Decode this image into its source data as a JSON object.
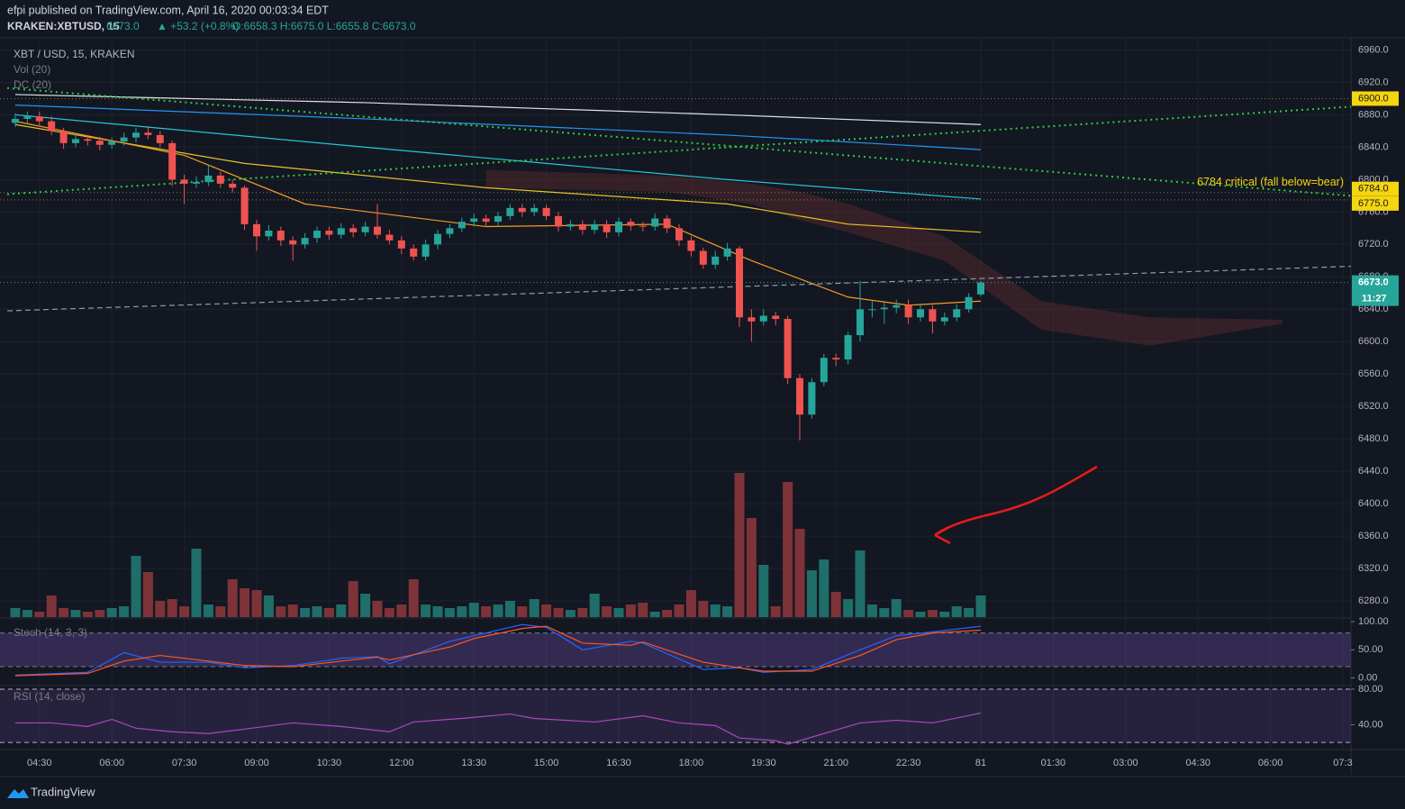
{
  "chart_data": {
    "type": "candlestick",
    "publisher": "efpi published on TradingView.com, April 16, 2020 00:03:34 EDT",
    "symbol_line": {
      "symbol": "KRAKEN:XBTUSD, 15",
      "last": "6673.0",
      "change": "▲ +53.2 (+0.8%)",
      "ohlc": "O:6658.3 H:6675.0 L:6655.8 C:6673.0"
    },
    "legend": [
      "XBT / USD, 15, KRAKEN",
      "Vol (20)",
      "DC (20)"
    ],
    "footer": "TradingView",
    "up_color": "#26a69a",
    "down_color": "#ef5350",
    "volume_up_color": "#1f6e69",
    "volume_down_color": "#7e3338",
    "xlim": [
      0.33,
      111.67
    ],
    "ylim": [
      6260,
      6975
    ],
    "xticks": [
      {
        "value": 3,
        "label": "04:30"
      },
      {
        "value": 9,
        "label": "06:00"
      },
      {
        "value": 15,
        "label": "07:30"
      },
      {
        "value": 21,
        "label": "09:00"
      },
      {
        "value": 27,
        "label": "10:30"
      },
      {
        "value": 33,
        "label": "12:00"
      },
      {
        "value": 39,
        "label": "13:30"
      },
      {
        "value": 45,
        "label": "15:00"
      },
      {
        "value": 51,
        "label": "16:30"
      },
      {
        "value": 57,
        "label": "18:00"
      },
      {
        "value": 63,
        "label": "19:30"
      },
      {
        "value": 69,
        "label": "21:00"
      },
      {
        "value": 75,
        "label": "22:30"
      },
      81,
      {
        "value": 87,
        "label": "01:30"
      },
      {
        "value": 93,
        "label": "03:00"
      },
      {
        "value": 99,
        "label": "04:30"
      },
      {
        "value": 105,
        "label": "06:00"
      },
      {
        "value": 111,
        "label": "07:3"
      }
    ],
    "yticks": [
      {
        "value": 6960,
        "label": "6960.0"
      },
      {
        "value": 6920,
        "label": "6920.0"
      },
      {
        "value": 6880,
        "label": "6880.0"
      },
      {
        "value": 6840,
        "label": "6840.0"
      },
      {
        "value": 6800,
        "label": "6800.0"
      },
      {
        "value": 6760,
        "label": "6760.0"
      },
      {
        "value": 6720,
        "label": "6720.0"
      },
      {
        "value": 6680,
        "label": "6680.0"
      },
      {
        "value": 6640,
        "label": "6640.0"
      },
      {
        "value": 6600,
        "label": "6600.0"
      },
      {
        "value": 6560,
        "label": "6560.0"
      },
      {
        "value": 6520,
        "label": "6520.0"
      },
      {
        "value": 6480,
        "label": "6480.0"
      },
      {
        "value": 6440,
        "label": "6440.0"
      },
      {
        "value": 6400,
        "label": "6400.0"
      },
      {
        "value": 6360,
        "label": "6360.0"
      },
      {
        "value": 6320,
        "label": "6320.0"
      },
      {
        "value": 6280,
        "label": "6280.0"
      }
    ],
    "candles": {
      "open": [
        6870,
        6875,
        6878,
        6872,
        6860,
        6845,
        6850,
        6848,
        6843,
        6847,
        6852,
        6858,
        6855,
        6845,
        6800,
        6795,
        6797,
        6805,
        6795,
        6790,
        6745,
        6730,
        6737,
        6725,
        6720,
        6728,
        6737,
        6732,
        6740,
        6735,
        6742,
        6732,
        6725,
        6715,
        6705,
        6720,
        6733,
        6740,
        6748,
        6752,
        6748,
        6755,
        6765,
        6760,
        6765,
        6755,
        6742,
        6745,
        6738,
        6745,
        6735,
        6748,
        6743,
        6742,
        6752,
        6740,
        6725,
        6712,
        6695,
        6705,
        6715,
        6630,
        6625,
        6632,
        6628,
        6555,
        6510,
        6550,
        6580,
        6578,
        6608,
        6640,
        6640,
        6642,
        6645,
        6630,
        6640,
        6625,
        6630,
        6640,
        6658.3
      ],
      "high": [
        6882,
        6884,
        6884,
        6878,
        6864,
        6856,
        6855,
        6853,
        6852,
        6858,
        6864,
        6866,
        6860,
        6848,
        6806,
        6804,
        6818,
        6810,
        6800,
        6793,
        6750,
        6744,
        6742,
        6730,
        6734,
        6742,
        6742,
        6746,
        6745,
        6748,
        6770,
        6738,
        6730,
        6720,
        6726,
        6738,
        6745,
        6753,
        6758,
        6757,
        6760,
        6770,
        6770,
        6770,
        6769,
        6760,
        6750,
        6750,
        6750,
        6750,
        6753,
        6752,
        6748,
        6758,
        6756,
        6745,
        6730,
        6716,
        6712,
        6722,
        6718,
        6640,
        6640,
        6637,
        6632,
        6560,
        6555,
        6585,
        6585,
        6612,
        6675,
        6650,
        6648,
        6652,
        6652,
        6646,
        6645,
        6636,
        6646,
        6660,
        6675
      ],
      "low": [
        6865,
        6870,
        6866,
        6855,
        6838,
        6840,
        6842,
        6836,
        6838,
        6842,
        6846,
        6850,
        6840,
        6792,
        6770,
        6790,
        6792,
        6790,
        6784,
        6738,
        6712,
        6725,
        6718,
        6700,
        6715,
        6722,
        6726,
        6727,
        6729,
        6730,
        6727,
        6720,
        6708,
        6700,
        6700,
        6714,
        6728,
        6735,
        6742,
        6742,
        6743,
        6750,
        6754,
        6755,
        6750,
        6736,
        6737,
        6732,
        6733,
        6728,
        6730,
        6737,
        6736,
        6737,
        6734,
        6718,
        6705,
        6690,
        6690,
        6700,
        6618,
        6600,
        6620,
        6620,
        6548,
        6478,
        6505,
        6545,
        6570,
        6572,
        6600,
        6630,
        6622,
        6635,
        6622,
        6625,
        6610,
        6620,
        6625,
        6636,
        6655.8
      ],
      "close": [
        6875,
        6878,
        6872,
        6860,
        6845,
        6850,
        6848,
        6843,
        6847,
        6852,
        6858,
        6855,
        6845,
        6800,
        6795,
        6797,
        6805,
        6795,
        6790,
        6745,
        6730,
        6737,
        6725,
        6720,
        6728,
        6737,
        6732,
        6740,
        6735,
        6742,
        6732,
        6725,
        6715,
        6705,
        6720,
        6733,
        6740,
        6748,
        6752,
        6748,
        6755,
        6765,
        6760,
        6765,
        6755,
        6742,
        6745,
        6738,
        6745,
        6735,
        6748,
        6743,
        6742,
        6752,
        6740,
        6725,
        6712,
        6695,
        6705,
        6715,
        6630,
        6625,
        6632,
        6628,
        6555,
        6510,
        6550,
        6580,
        6578,
        6608,
        6640,
        6640,
        6642,
        6645,
        6630,
        6640,
        6625,
        6630,
        6640,
        6655,
        6673
      ],
      "volume": [
        10,
        8,
        6,
        24,
        10,
        8,
        6,
        8,
        10,
        12,
        68,
        50,
        18,
        20,
        12,
        76,
        14,
        12,
        42,
        32,
        30,
        24,
        12,
        14,
        10,
        12,
        10,
        14,
        40,
        26,
        18,
        10,
        14,
        42,
        14,
        12,
        10,
        12,
        16,
        12,
        14,
        18,
        12,
        20,
        14,
        10,
        8,
        10,
        26,
        12,
        10,
        14,
        16,
        6,
        8,
        14,
        30,
        18,
        14,
        12,
        160,
        110,
        58,
        12,
        150,
        98,
        52,
        64,
        28,
        20,
        74,
        14,
        10,
        20,
        8,
        6,
        8,
        6,
        12,
        10,
        24
      ]
    },
    "cloud": {
      "x": [
        40,
        55,
        62,
        66,
        70,
        78,
        86,
        95,
        106
      ],
      "upper": [
        6812,
        6805,
        6795,
        6785,
        6770,
        6730,
        6650,
        6630,
        6627
      ],
      "lower": [
        6790,
        6785,
        6770,
        6750,
        6735,
        6700,
        6615,
        6595,
        6622
      ],
      "color": "rgba(120,50,50,0.35)"
    },
    "overlays": [
      {
        "color": "#e0e3eb",
        "style": "solid",
        "x": [
          1,
          30,
          60,
          81
        ],
        "values": [
          6905,
          6895,
          6880,
          6868
        ]
      },
      {
        "color": "#2196f3",
        "style": "solid",
        "x": [
          1,
          30,
          60,
          81
        ],
        "values": [
          6892,
          6875,
          6855,
          6837
        ]
      },
      {
        "color": "#26c6da",
        "style": "solid",
        "x": [
          1,
          30,
          60,
          81
        ],
        "values": [
          6880,
          6840,
          6800,
          6776
        ]
      },
      {
        "color": "#e6c229",
        "style": "solid",
        "x": [
          1,
          20,
          40,
          60,
          70,
          81
        ],
        "values": [
          6868,
          6820,
          6790,
          6770,
          6745,
          6735
        ]
      },
      {
        "color": "#f59a23",
        "style": "solid",
        "x": [
          1,
          15,
          25,
          40,
          55,
          62,
          70,
          75,
          81
        ],
        "values": [
          6872,
          6830,
          6770,
          6742,
          6745,
          6700,
          6655,
          6645,
          6650
        ]
      },
      {
        "color": "#2ecc40",
        "style": "dotted",
        "x": [
          0.33,
          111.67
        ],
        "values": [
          6782,
          6890
        ]
      },
      {
        "color": "#2ecc40",
        "style": "dotted",
        "x": [
          0.33,
          111.67
        ],
        "values": [
          6913,
          6780
        ]
      },
      {
        "color": "#9598a1",
        "style": "dashed",
        "x": [
          0.33,
          111.67
        ],
        "values": [
          6638,
          6693
        ]
      }
    ],
    "levels": [
      {
        "value": 6900,
        "label": "6900.0",
        "color": "#f5d50f"
      },
      {
        "value": 6784,
        "label": "6784.0",
        "color": "#f5d50f"
      },
      {
        "value": 6775,
        "label": "6775.0",
        "color": "#f5d50f"
      }
    ],
    "annotation": "6784 critical (fall below=bear)",
    "last_price": {
      "value": 6673,
      "label": "6673.0",
      "countdown": "11:27",
      "color": "#26a69a"
    },
    "stoch": {
      "name": "Stoch (14, 3, 3)",
      "ylim": [
        -12,
        105
      ],
      "yticks": [
        {
          "value": 100,
          "label": "100.00"
        },
        {
          "value": 50,
          "label": "50.00"
        },
        {
          "value": 0,
          "label": "0.00"
        }
      ],
      "bands": [
        80,
        20
      ],
      "x": [
        1,
        7,
        10,
        13,
        17,
        20,
        24,
        28,
        31,
        32,
        37,
        39,
        43,
        45,
        48,
        52,
        53,
        58,
        61,
        63,
        67,
        71,
        74,
        77,
        81
      ],
      "k": {
        "color": "#2962ff",
        "values": [
          5,
          10,
          45,
          28,
          28,
          18,
          22,
          35,
          38,
          25,
          65,
          75,
          95,
          90,
          50,
          65,
          62,
          15,
          18,
          10,
          15,
          50,
          75,
          82,
          92
        ]
      },
      "d": {
        "color": "#ff5722",
        "values": [
          4,
          8,
          30,
          40,
          30,
          22,
          20,
          30,
          37,
          32,
          55,
          70,
          88,
          92,
          62,
          58,
          64,
          28,
          18,
          12,
          12,
          40,
          68,
          80,
          85
        ]
      }
    },
    "rsi": {
      "name": "RSI (14, close)",
      "ylim": [
        12,
        83
      ],
      "yticks": [
        {
          "value": 80,
          "label": "80.00"
        },
        {
          "value": 40,
          "label": "40.00"
        }
      ],
      "bands": [
        80,
        20
      ],
      "color": "#ab47bc",
      "x": [
        1,
        4,
        7,
        9,
        11,
        14,
        17,
        20,
        24,
        28,
        32,
        34,
        38,
        42,
        44,
        49,
        53,
        56,
        59,
        61,
        64,
        65,
        68,
        71,
        74,
        77,
        81
      ],
      "values": [
        42,
        42,
        38,
        46,
        36,
        32,
        30,
        35,
        42,
        38,
        32,
        43,
        47,
        52,
        47,
        43,
        50,
        42,
        39,
        25,
        22,
        18,
        30,
        42,
        45,
        42,
        53
      ]
    }
  }
}
